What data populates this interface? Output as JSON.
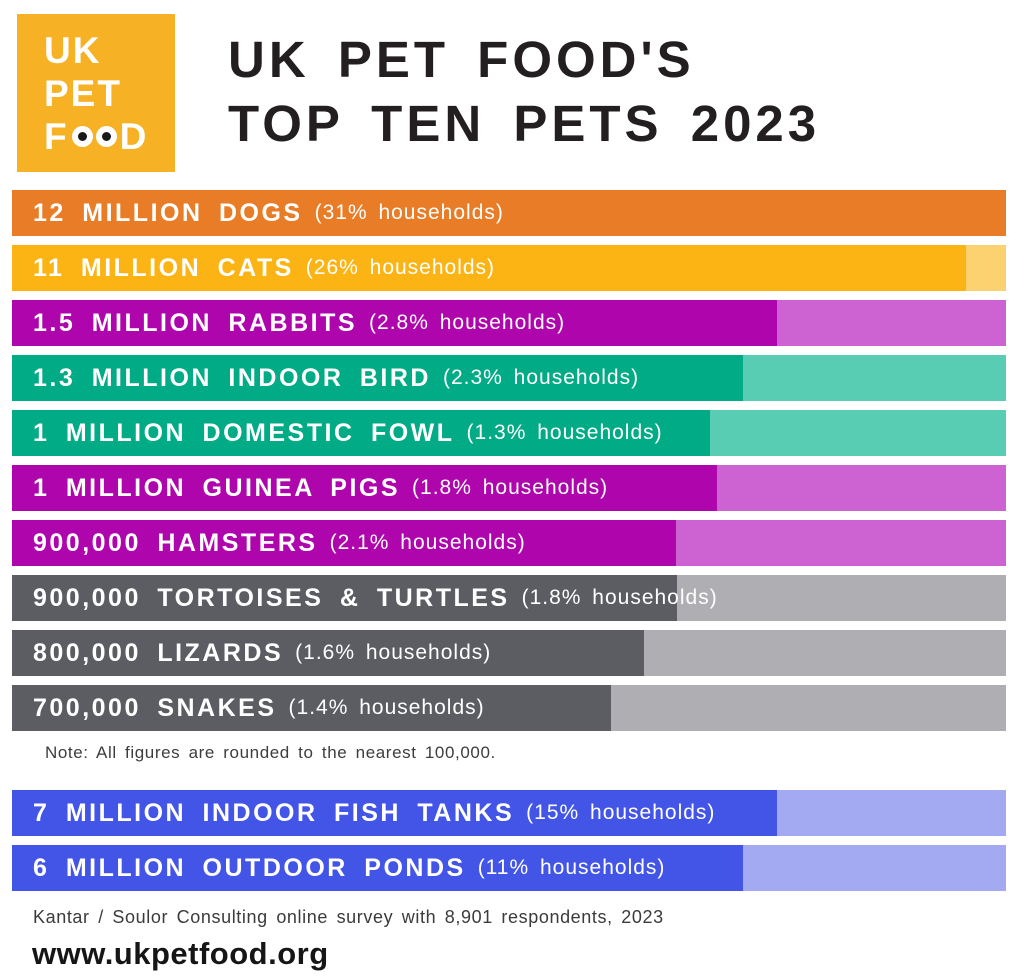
{
  "colors": {
    "logo_bg": "#F6B124",
    "title_text": "#231F20",
    "note_text": "#3D3D3D",
    "source_text": "#3B3B3B",
    "website_text": "#161616",
    "orange": "#E97C26",
    "yellow": "#FBB414",
    "yellow_light": "#FCD271",
    "magenta": "#AF05AC",
    "magenta_light": "#CD62D2",
    "teal": "#00AB85",
    "teal_light": "#58CDB3",
    "grey": "#5B5D63",
    "grey_light": "#AEAEB3",
    "blue": "#4355E7",
    "blue_light": "#A3AAF2"
  },
  "logo": {
    "line1": "UK",
    "line2": "PET",
    "food_f": "F",
    "food_d": "D"
  },
  "header": {
    "title_line1": "UK PET FOOD'S",
    "title_line2": "TOP TEN PETS 2023"
  },
  "chart_data": {
    "type": "bar",
    "orientation": "horizontal",
    "title": "UK PET FOOD'S TOP TEN PETS 2023",
    "categories": [
      "Dogs",
      "Cats",
      "Rabbits",
      "Indoor bird",
      "Domestic fowl",
      "Guinea pigs",
      "Hamsters",
      "Tortoises & turtles",
      "Lizards",
      "Snakes",
      "Indoor fish tanks",
      "Outdoor ponds"
    ],
    "values_millions": [
      12,
      11,
      1.5,
      1.3,
      1,
      1,
      0.9,
      0.9,
      0.8,
      0.7,
      7,
      6
    ],
    "households_pct": [
      31,
      26,
      2.8,
      2.3,
      1.3,
      1.8,
      2.1,
      1.8,
      1.6,
      1.4,
      15,
      11
    ],
    "note": "Note: All figures are rounded to the nearest 100,000.",
    "bars": [
      {
        "animal": "dogs",
        "label": "12 MILLION DOGS",
        "sublabel": "(31% households)",
        "population": 12000000,
        "households_pct": 31,
        "bar_pct": 100,
        "color": "#E97C26",
        "tail_color": "#E97C26"
      },
      {
        "animal": "cats",
        "label": "11 MILLION CATS",
        "sublabel": "(26% households)",
        "population": 11000000,
        "households_pct": 26,
        "bar_pct": 96,
        "color": "#FBB414",
        "tail_color": "#FCD271"
      },
      {
        "animal": "rabbits",
        "label": "1.5 MILLION RABBITS",
        "sublabel": "(2.8% households)",
        "population": 1500000,
        "households_pct": 2.8,
        "bar_pct": 77,
        "color": "#AF05AC",
        "tail_color": "#CD62D2"
      },
      {
        "animal": "indoor-bird",
        "label": "1.3 MILLION INDOOR BIRD",
        "sublabel": "(2.3% households)",
        "population": 1300000,
        "households_pct": 2.3,
        "bar_pct": 73.5,
        "color": "#00AB85",
        "tail_color": "#58CDB3"
      },
      {
        "animal": "domestic-fowl",
        "label": "1 MILLION DOMESTIC FOWL",
        "sublabel": "(1.3% households)",
        "population": 1000000,
        "households_pct": 1.3,
        "bar_pct": 70.2,
        "color": "#00AB85",
        "tail_color": "#58CDB3"
      },
      {
        "animal": "guinea-pigs",
        "label": "1 MILLION GUINEA PIGS",
        "sublabel": "(1.8% households)",
        "population": 1000000,
        "households_pct": 1.8,
        "bar_pct": 70.9,
        "color": "#AF05AC",
        "tail_color": "#CD62D2"
      },
      {
        "animal": "hamsters",
        "label": "900,000 HAMSTERS",
        "sublabel": "(2.1% households)",
        "population": 900000,
        "households_pct": 2.1,
        "bar_pct": 66.8,
        "color": "#AF05AC",
        "tail_color": "#CD62D2"
      },
      {
        "animal": "tortoises-turtles",
        "label": "900,000 TORTOISES & TURTLES",
        "sublabel": "(1.8% households)",
        "population": 900000,
        "households_pct": 1.8,
        "bar_pct": 66.9,
        "color": "#5B5D63",
        "tail_color": "#AEAEB3"
      },
      {
        "animal": "lizards",
        "label": "800,000 LIZARDS",
        "sublabel": "(1.6% households)",
        "population": 800000,
        "households_pct": 1.6,
        "bar_pct": 63.6,
        "color": "#5B5D63",
        "tail_color": "#AEAEB3"
      },
      {
        "animal": "snakes",
        "label": "700,000 SNAKES",
        "sublabel": "(1.4% households)",
        "population": 700000,
        "households_pct": 1.4,
        "bar_pct": 60.3,
        "color": "#5B5D63",
        "tail_color": "#AEAEB3"
      },
      {
        "animal": "indoor-fish-tanks",
        "label": "7 MILLION INDOOR FISH TANKS",
        "sublabel": "(15% households)",
        "population": 7000000,
        "households_pct": 15,
        "bar_pct": 77,
        "color": "#4355E7",
        "tail_color": "#A3AAF2"
      },
      {
        "animal": "outdoor-ponds",
        "label": "6 MILLION OUTDOOR PONDS",
        "sublabel": "(11% households)",
        "population": 6000000,
        "households_pct": 11,
        "bar_pct": 73.5,
        "color": "#4355E7",
        "tail_color": "#A3AAF2"
      }
    ]
  },
  "footer": {
    "source": "Kantar / Soulor Consulting online survey with 8,901 respondents, 2023",
    "website": "www.ukpetfood.org"
  }
}
